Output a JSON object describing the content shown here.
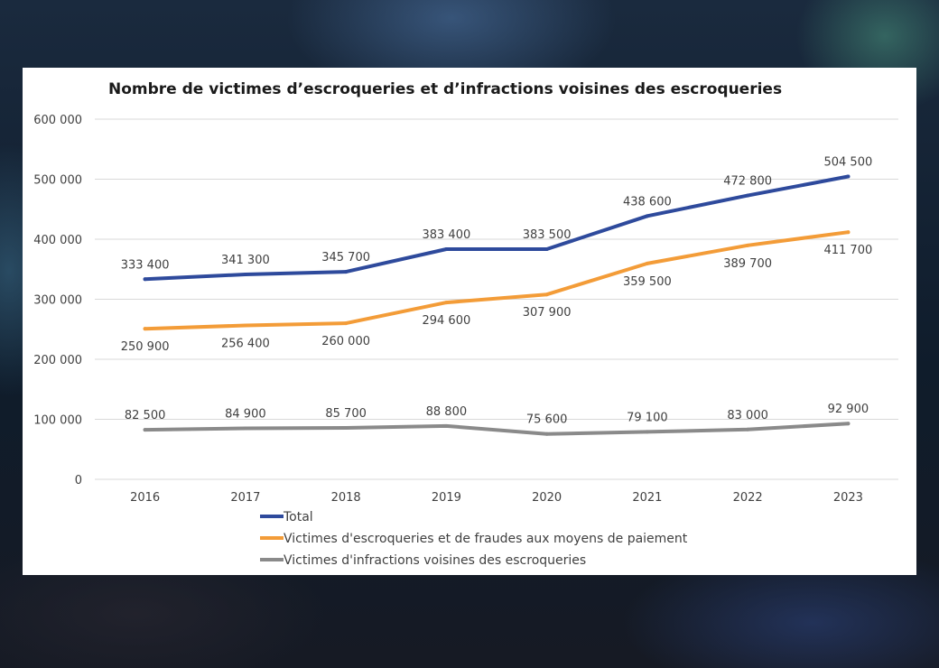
{
  "colors": {
    "total": "#2e4a9c",
    "escroqueries": "#f39c38",
    "infractions": "#8a8a8a",
    "grid": "#d9d9d9"
  },
  "chart_data": {
    "type": "line",
    "title": "Nombre de victimes d’escroqueries et d’infractions voisines des escroqueries",
    "xlabel": "",
    "ylabel": "",
    "categories": [
      "2016",
      "2017",
      "2018",
      "2019",
      "2020",
      "2021",
      "2022",
      "2023"
    ],
    "ylim": [
      0,
      600000
    ],
    "yticks": [
      0,
      100000,
      200000,
      300000,
      400000,
      500000,
      600000
    ],
    "ytick_labels": [
      "0",
      "100 000",
      "200 000",
      "300 000",
      "400 000",
      "500 000",
      "600 000"
    ],
    "grid": true,
    "legend_position": "bottom",
    "series": [
      {
        "name": "Total",
        "color_key": "total",
        "label_side": "above",
        "values": [
          333400,
          341300,
          345700,
          383400,
          383500,
          438600,
          472800,
          504500
        ],
        "labels": [
          "333 400",
          "341 300",
          "345 700",
          "383 400",
          "383 500",
          "438 600",
          "472 800",
          "504 500"
        ]
      },
      {
        "name": "Victimes d'escroqueries et de fraudes aux moyens de paiement",
        "color_key": "escroqueries",
        "label_side": "below",
        "values": [
          250900,
          256400,
          260000,
          294600,
          307900,
          359500,
          389700,
          411700
        ],
        "labels": [
          "250 900",
          "256 400",
          "260 000",
          "294 600",
          "307 900",
          "359 500",
          "389 700",
          "411 700"
        ]
      },
      {
        "name": "Victimes d'infractions voisines des escroqueries",
        "color_key": "infractions",
        "label_side": "above",
        "values": [
          82500,
          84900,
          85700,
          88800,
          75600,
          79100,
          83000,
          92900
        ],
        "labels": [
          "82 500",
          "84 900",
          "85 700",
          "88 800",
          "75 600",
          "79 100",
          "83 000",
          "92 900"
        ]
      }
    ]
  }
}
